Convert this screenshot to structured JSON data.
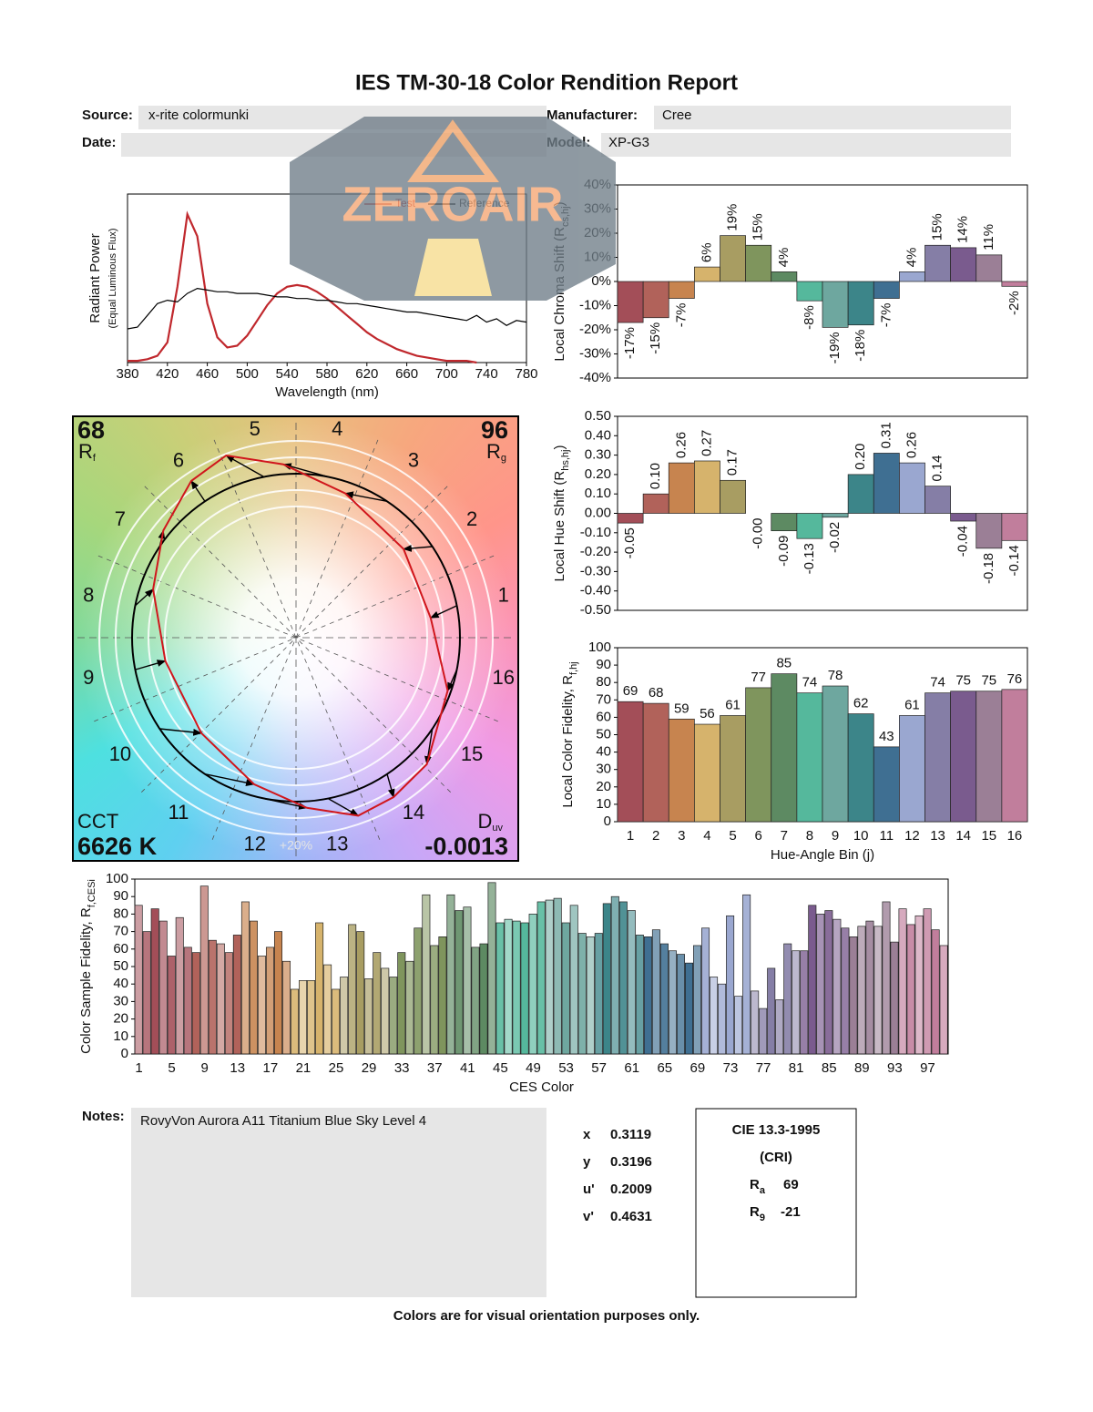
{
  "title": "IES TM-30-18 Color Rendition Report",
  "header": {
    "source_label": "Source:",
    "source": "x-rite colormunki",
    "manufacturer_label": "Manufacturer:",
    "manufacturer": "Cree",
    "date_label": "Date:",
    "model_label": "Model:",
    "model": "XP-G3"
  },
  "watermark": "ZEROAIR",
  "chart_data": [
    {
      "type": "line",
      "xlabel": "Wavelength (nm)",
      "ylabel": "Radiant Power",
      "ylabel_note": "(Equal Luminous Flux)",
      "x": [
        380,
        390,
        400,
        410,
        420,
        430,
        440,
        450,
        460,
        470,
        480,
        490,
        500,
        510,
        520,
        530,
        540,
        550,
        560,
        570,
        580,
        590,
        600,
        610,
        620,
        630,
        640,
        650,
        660,
        670,
        680,
        690,
        700,
        710,
        720,
        730,
        740,
        750,
        760,
        770,
        780
      ],
      "xlim": [
        380,
        780
      ],
      "xticks": [
        380,
        420,
        460,
        500,
        540,
        580,
        620,
        660,
        700,
        740,
        780
      ],
      "ylim": [
        0,
        1
      ],
      "legend": "top",
      "series": [
        {
          "name": "Test",
          "color": "#c0282d",
          "values": [
            0.01,
            0.01,
            0.02,
            0.04,
            0.12,
            0.45,
            0.88,
            0.75,
            0.35,
            0.15,
            0.09,
            0.1,
            0.16,
            0.25,
            0.34,
            0.41,
            0.45,
            0.46,
            0.45,
            0.42,
            0.38,
            0.33,
            0.28,
            0.23,
            0.18,
            0.14,
            0.11,
            0.08,
            0.06,
            0.04,
            0.03,
            0.02,
            0.01,
            0.01,
            0.01,
            0,
            null,
            null,
            null,
            null,
            null
          ]
        },
        {
          "name": "Reference",
          "color": "#000000",
          "values": [
            0.2,
            0.21,
            0.28,
            0.35,
            0.37,
            0.36,
            0.41,
            0.44,
            0.43,
            0.42,
            0.42,
            0.41,
            0.41,
            0.41,
            0.4,
            0.39,
            0.39,
            0.38,
            0.38,
            0.37,
            0.37,
            0.36,
            0.35,
            0.35,
            0.34,
            0.33,
            0.32,
            0.31,
            0.3,
            0.3,
            0.29,
            0.28,
            0.27,
            0.26,
            0.25,
            0.28,
            0.24,
            0.26,
            0.22,
            0.25,
            0.24
          ]
        }
      ]
    },
    {
      "type": "bar",
      "ylabel": "Local Chroma Shift (R",
      "ylabel_sub": "cs,hj",
      "ylabel_end": ")",
      "values": [
        -17,
        -15,
        -7,
        6,
        19,
        15,
        4,
        -8,
        -19,
        -18,
        -7,
        4,
        15,
        14,
        11,
        -2
      ],
      "value_labels": [
        "-17%",
        "-15%",
        "-7%",
        "6%",
        "19%",
        "15%",
        "4%",
        "-8%",
        "-19%",
        "-18%",
        "-7%",
        "4%",
        "15%",
        "14%",
        "11%",
        "-2%"
      ],
      "ylim": [
        -40,
        40
      ],
      "yticks": [
        {
          "value": -40,
          "label": "-40%"
        },
        {
          "value": -30,
          "label": "-30%"
        },
        {
          "value": -20,
          "label": "-20%"
        },
        {
          "value": -10,
          "label": "-10%"
        },
        {
          "value": 0,
          "label": "0%"
        },
        {
          "value": 10,
          "label": "10%"
        },
        {
          "value": 20,
          "label": "20%"
        },
        {
          "value": 30,
          "label": "30%"
        },
        {
          "value": 40,
          "label": "40%"
        }
      ],
      "colors": [
        "#a34e58",
        "#b1625a",
        "#c7844f",
        "#d6b36c",
        "#a89d62",
        "#7f955d",
        "#5d8a62",
        "#55b89c",
        "#6ea79f",
        "#3c8589",
        "#3f6f92",
        "#9aa7d0",
        "#857ea6",
        "#7a5b8e",
        "#9b7f96",
        "#c17e9c"
      ]
    },
    {
      "type": "bar",
      "ylabel": "Local Hue Shift (R",
      "ylabel_sub": "hs,hj",
      "ylabel_end": ")",
      "values": [
        -0.05,
        0.1,
        0.26,
        0.27,
        0.17,
        0,
        -0.09,
        -0.13,
        -0.02,
        0.2,
        0.31,
        0.26,
        0.14,
        -0.04,
        -0.18,
        -0.14
      ],
      "value_labels": [
        "-0.05",
        "0.10",
        "0.26",
        "0.27",
        "0.17",
        "-0.00",
        "-0.09",
        "-0.13",
        "-0.02",
        "0.20",
        "0.31",
        "0.26",
        "0.14",
        "-0.04",
        "-0.18",
        "-0.14"
      ],
      "ylim": [
        -0.5,
        0.5
      ],
      "yticks": [
        {
          "value": -0.5,
          "label": "-0.50"
        },
        {
          "value": -0.4,
          "label": "-0.40"
        },
        {
          "value": -0.3,
          "label": "-0.30"
        },
        {
          "value": -0.2,
          "label": "-0.20"
        },
        {
          "value": -0.1,
          "label": "-0.10"
        },
        {
          "value": 0,
          "label": "0.00"
        },
        {
          "value": 0.1,
          "label": "0.10"
        },
        {
          "value": 0.2,
          "label": "0.20"
        },
        {
          "value": 0.3,
          "label": "0.30"
        },
        {
          "value": 0.4,
          "label": "0.40"
        },
        {
          "value": 0.5,
          "label": "0.50"
        }
      ],
      "colors": [
        "#a34e58",
        "#b1625a",
        "#c7844f",
        "#d6b36c",
        "#a89d62",
        "#7f955d",
        "#5d8a62",
        "#55b89c",
        "#6ea79f",
        "#3c8589",
        "#3f6f92",
        "#9aa7d0",
        "#857ea6",
        "#7a5b8e",
        "#9b7f96",
        "#c17e9c"
      ]
    },
    {
      "type": "bar",
      "ylabel": "Local Color Fidelity, R",
      "ylabel_sub": "f,hj",
      "xlabel": "Hue-Angle Bin (j)",
      "categories": [
        "1",
        "2",
        "3",
        "4",
        "5",
        "6",
        "7",
        "8",
        "9",
        "10",
        "11",
        "12",
        "13",
        "14",
        "15",
        "16"
      ],
      "values": [
        69,
        68,
        59,
        56,
        61,
        77,
        85,
        74,
        78,
        62,
        43,
        61,
        74,
        75,
        75,
        76
      ],
      "data_labels": true,
      "ylim": [
        0,
        100
      ],
      "yticks": [
        0,
        10,
        20,
        30,
        40,
        50,
        60,
        70,
        80,
        90,
        100
      ],
      "colors": [
        "#a34e58",
        "#b1625a",
        "#c7844f",
        "#d6b36c",
        "#a89d62",
        "#7f955d",
        "#5d8a62",
        "#55b89c",
        "#6ea79f",
        "#3c8589",
        "#3f6f92",
        "#9aa7d0",
        "#857ea6",
        "#7a5b8e",
        "#9b7f96",
        "#c17e9c"
      ]
    },
    {
      "type": "bar",
      "ylabel": "Color Sample Fidelity, R",
      "ylabel_sub": "f,CESi",
      "xlabel": "CES Color",
      "categories": [
        "1",
        null,
        null,
        null,
        "5",
        null,
        null,
        null,
        "9",
        null,
        null,
        null,
        "13",
        null,
        null,
        null,
        "17",
        null,
        null,
        null,
        "21",
        null,
        null,
        null,
        "25",
        null,
        null,
        null,
        "29",
        null,
        null,
        null,
        "33",
        null,
        null,
        null,
        "37",
        null,
        null,
        null,
        "41",
        null,
        null,
        null,
        "45",
        null,
        null,
        null,
        "49",
        null,
        null,
        null,
        "53",
        null,
        null,
        null,
        "57",
        null,
        null,
        null,
        "61",
        null,
        null,
        null,
        "65",
        null,
        null,
        null,
        "69",
        null,
        null,
        null,
        "73",
        null,
        null,
        null,
        "77",
        null,
        null,
        null,
        "81",
        null,
        null,
        null,
        "85",
        null,
        null,
        null,
        "89",
        null,
        null,
        null,
        "93",
        null,
        null,
        null,
        "97",
        null,
        null
      ],
      "values": [
        85,
        70,
        83,
        76,
        56,
        78,
        61,
        58,
        96,
        65,
        63,
        58,
        68,
        87,
        76,
        56,
        61,
        70,
        53,
        37,
        42,
        42,
        75,
        51,
        37,
        44,
        74,
        70,
        43,
        58,
        49,
        44,
        58,
        53,
        72,
        91,
        62,
        67,
        91,
        82,
        84,
        61,
        63,
        98,
        75,
        77,
        76,
        75,
        80,
        87,
        88,
        89,
        75,
        85,
        69,
        67,
        69,
        86,
        90,
        87,
        82,
        68,
        67,
        71,
        63,
        59,
        57,
        52,
        62,
        72,
        44,
        40,
        79,
        33,
        91,
        36,
        26,
        49,
        31,
        63,
        59,
        59,
        85,
        80,
        82,
        77,
        72,
        67,
        73,
        76,
        73,
        87,
        64,
        83,
        74,
        79,
        83,
        71,
        62
      ],
      "ylim": [
        0,
        100
      ],
      "yticks": [
        0,
        10,
        20,
        30,
        40,
        50,
        60,
        70,
        80,
        90,
        100
      ]
    },
    {
      "type": "vector",
      "rf": 68,
      "rf_label": "R",
      "rf_sub": "f",
      "rg": 96,
      "rg_label": "R",
      "rg_sub": "g",
      "cct_label": "CCT",
      "cct": "6626 K",
      "duv_label": "D",
      "duv_sub": "uv",
      "duv": -0.0013,
      "ring_label": "+20%"
    }
  ],
  "notes_label": "Notes:",
  "notes": "RovyVon Aurora A11 Titanium Blue Sky Level 4",
  "chromaticity": [
    {
      "label": "x",
      "value": 0.3119
    },
    {
      "label": "y",
      "value": 0.3196
    },
    {
      "label": "u'",
      "value": 0.2009
    },
    {
      "label": "v'",
      "value": 0.4631
    }
  ],
  "cie": {
    "title": "CIE 13.3-1995",
    "subtitle": "(CRI)",
    "ra_label": "R",
    "ra_sub": "a",
    "ra": 69,
    "r9_label": "R",
    "r9_sub": "9",
    "r9": -21
  },
  "footer": "Colors are for visual orientation purposes only."
}
